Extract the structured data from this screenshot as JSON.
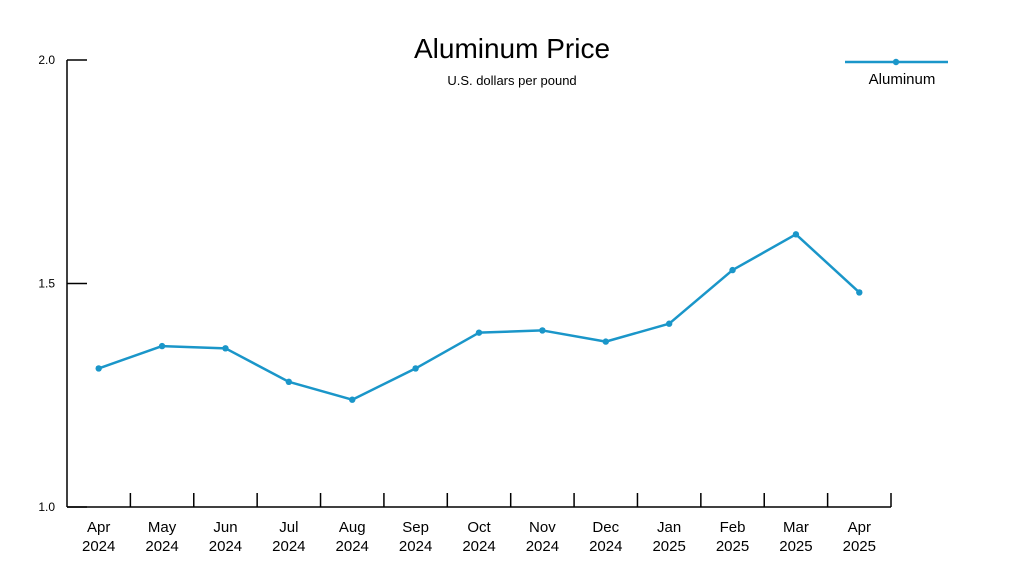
{
  "chart_data": {
    "type": "line",
    "title": "Aluminum Price",
    "subtitle": "U.S. dollars per pound",
    "xlabel": "",
    "ylabel": "",
    "categories": [
      [
        "Apr",
        "2024"
      ],
      [
        "May",
        "2024"
      ],
      [
        "Jun",
        "2024"
      ],
      [
        "Jul",
        "2024"
      ],
      [
        "Aug",
        "2024"
      ],
      [
        "Sep",
        "2024"
      ],
      [
        "Oct",
        "2024"
      ],
      [
        "Nov",
        "2024"
      ],
      [
        "Dec",
        "2024"
      ],
      [
        "Jan",
        "2025"
      ],
      [
        "Feb",
        "2025"
      ],
      [
        "Mar",
        "2025"
      ],
      [
        "Apr",
        "2025"
      ]
    ],
    "series": [
      {
        "name": "Aluminum",
        "color": "#1a96c9",
        "values": [
          1.31,
          1.36,
          1.355,
          1.28,
          1.24,
          1.31,
          1.39,
          1.395,
          1.37,
          1.41,
          1.53,
          1.61,
          1.48
        ]
      }
    ],
    "ylim": [
      1.0,
      2.0
    ],
    "yticks": [
      "1.0",
      "1.5",
      "2.0"
    ],
    "grid": false,
    "legend_position": "top-right"
  }
}
